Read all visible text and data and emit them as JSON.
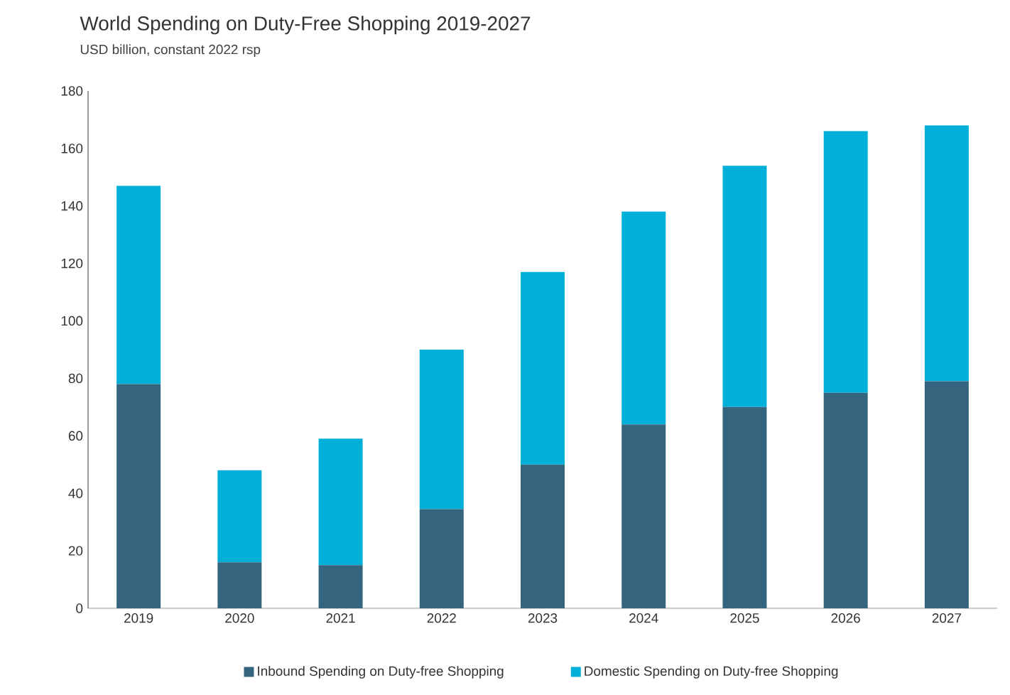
{
  "chart_data": {
    "type": "bar",
    "title": "World Spending on Duty-Free Shopping 2019-2027",
    "subtitle": "USD billion, constant 2022 rsp",
    "categories": [
      "2019",
      "2020",
      "2021",
      "2022",
      "2023",
      "2024",
      "2025",
      "2026",
      "2027"
    ],
    "stacked": true,
    "series": [
      {
        "name": "Inbound Spending on Duty-free Shopping",
        "color": "#35647e",
        "values": [
          78,
          16,
          15,
          34.5,
          50,
          64,
          70,
          75,
          79
        ]
      },
      {
        "name": "Domestic Spending on Duty-free Shopping",
        "color": "#00b0d8",
        "values": [
          69,
          32,
          44,
          55.5,
          67,
          74,
          84,
          91,
          89
        ]
      }
    ],
    "ylim": [
      0,
      180
    ],
    "yticks": [
      0,
      20,
      40,
      60,
      80,
      100,
      120,
      140,
      160,
      180
    ],
    "legend": "bottom",
    "grid": false
  }
}
